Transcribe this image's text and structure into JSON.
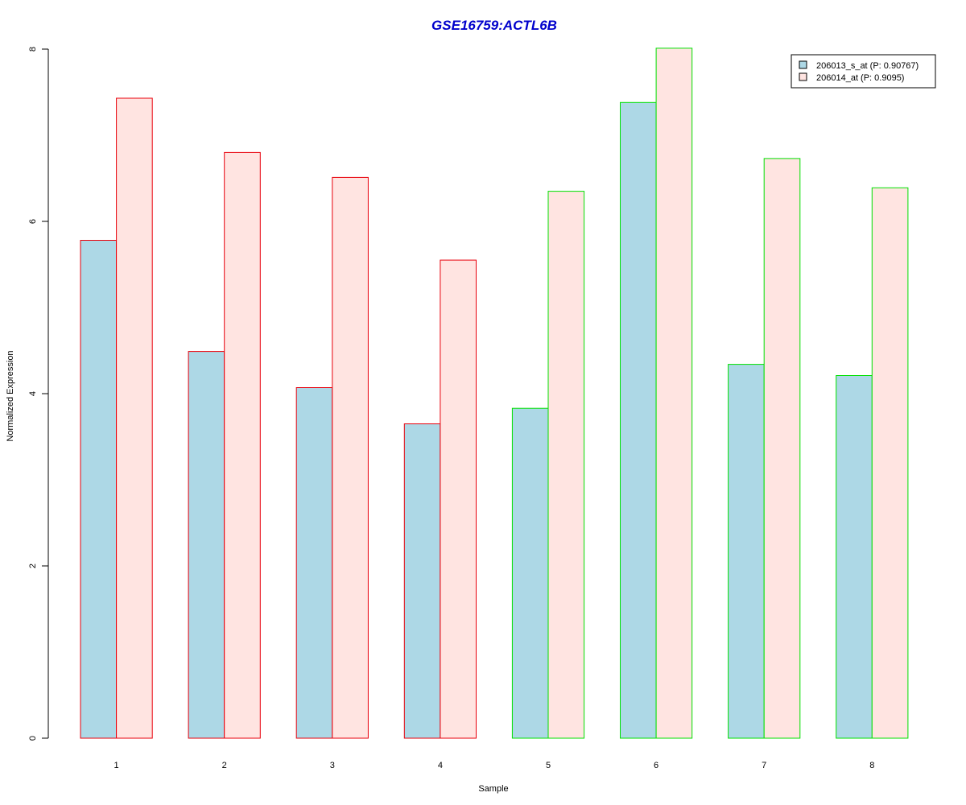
{
  "colors": {
    "title": "#0000CC",
    "series_fill": [
      "#ADD8E6",
      "#FFE4E1"
    ],
    "group_border": [
      "#E8000B",
      "#00E000"
    ],
    "axis": "#000000"
  },
  "chart_data": {
    "type": "bar",
    "title": "GSE16759:ACTL6B",
    "xlabel": "Sample",
    "ylabel": "Normalized Expression",
    "categories": [
      "1",
      "2",
      "3",
      "4",
      "5",
      "6",
      "7",
      "8"
    ],
    "ylim": [
      0,
      8
    ],
    "yticks": [
      "0",
      "2",
      "4",
      "6",
      "8"
    ],
    "series": [
      {
        "name": "206013_s_at (P: 0.90767)",
        "values": [
          5.78,
          4.49,
          4.07,
          3.65,
          3.83,
          7.38,
          4.34,
          4.21
        ]
      },
      {
        "name": "206014_at (P: 0.9095)",
        "values": [
          7.43,
          6.8,
          6.51,
          5.55,
          6.35,
          8.01,
          6.73,
          6.39
        ]
      }
    ],
    "sample_group": [
      0,
      0,
      0,
      0,
      1,
      1,
      1,
      1
    ],
    "grid": false,
    "legend_position": "top-right"
  }
}
